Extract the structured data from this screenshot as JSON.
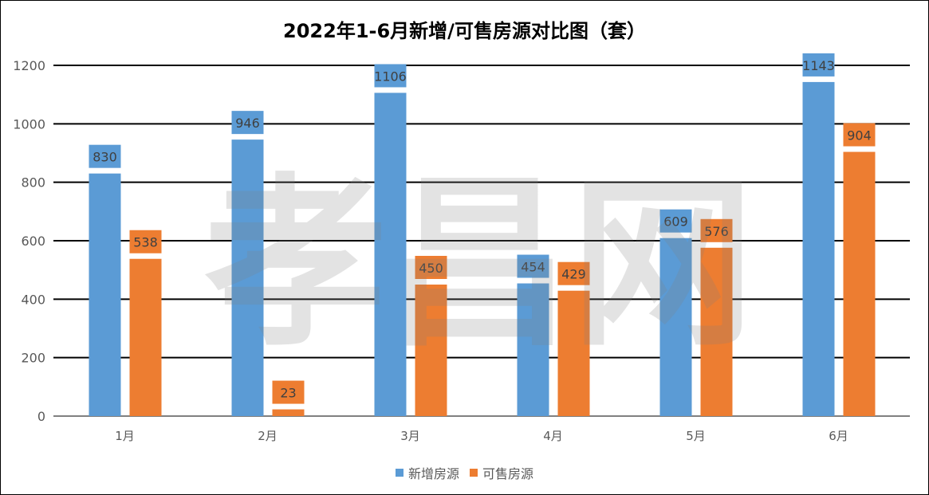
{
  "watermark": "孝昌网",
  "colors": {
    "new": "#5B9BD5",
    "sale": "#ED7D31",
    "grid": "#000000",
    "watermark": "#D9D9D9"
  },
  "chart_data": {
    "type": "bar",
    "title": "2022年1-6月新增/可售房源对比图（套）",
    "categories": [
      "1月",
      "2月",
      "3月",
      "4月",
      "5月",
      "6月"
    ],
    "series": [
      {
        "name": "新增房源",
        "values": [
          830,
          946,
          1106,
          454,
          609,
          1143
        ]
      },
      {
        "name": "可售房源",
        "values": [
          538,
          23,
          450,
          429,
          576,
          904
        ]
      }
    ],
    "ylim": [
      0,
      1200
    ],
    "yticks": [
      0,
      200,
      400,
      600,
      800,
      1000,
      1200
    ],
    "grid": true,
    "legend": "bottom",
    "data_labels": true
  }
}
